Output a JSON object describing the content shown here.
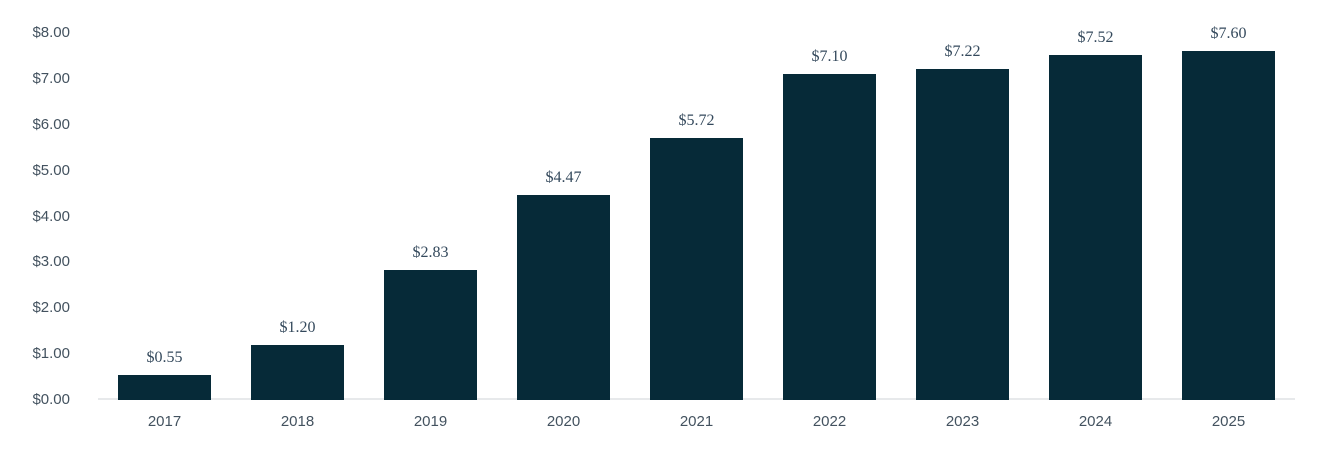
{
  "chart_data": {
    "type": "bar",
    "title": "",
    "xlabel": "",
    "ylabel": "",
    "categories": [
      "2017",
      "2018",
      "2019",
      "2020",
      "2021",
      "2022",
      "2023",
      "2024",
      "2025"
    ],
    "values": [
      0.55,
      1.2,
      2.83,
      4.47,
      5.72,
      7.1,
      7.22,
      7.52,
      7.6
    ],
    "bar_labels": [
      "$0.55",
      "$1.20",
      "$2.83",
      "$4.47",
      "$5.72",
      "$7.10",
      "$7.22",
      "$7.52",
      "$7.60"
    ],
    "ylim": [
      0,
      8
    ],
    "ytick_labels_top_down": [
      "$8.00",
      "$7.00",
      "$6.00",
      "$5.00",
      "$4.00",
      "$3.00",
      "$2.00",
      "$1.00",
      "$0.00"
    ],
    "grid": "off",
    "legend": "none",
    "colors": {
      "bar": "#062a38",
      "axis_text": "#43525f",
      "bar_label_text": "#34495c",
      "baseline": "#e7e9eb",
      "background": "#ffffff"
    }
  }
}
